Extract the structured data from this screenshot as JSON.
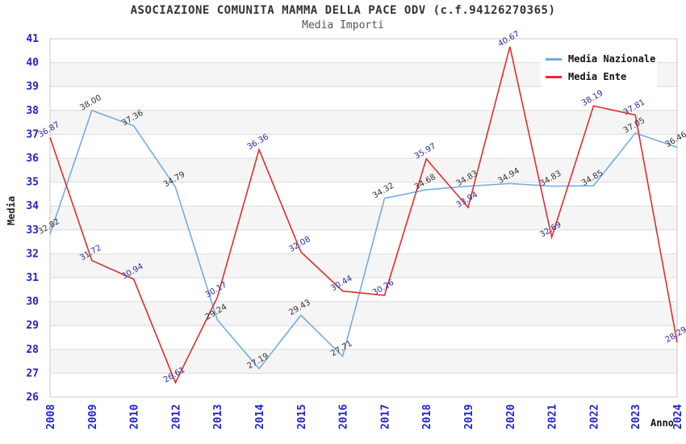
{
  "title": "ASOCIAZIONE COMUNITA MAMMA DELLA PACE ODV (c.f.94126270365)",
  "subtitle": "Media Importi",
  "chart_data": {
    "type": "line",
    "title": "ASOCIAZIONE COMUNITA MAMMA DELLA PACE ODV (c.f.94126270365)",
    "subtitle": "Media Importi",
    "xlabel": "Anno",
    "ylabel": "Media",
    "x": [
      "2008",
      "2009",
      "2010",
      "2012",
      "2013",
      "2014",
      "2015",
      "2016",
      "2017",
      "2018",
      "2019",
      "2020",
      "2021",
      "2022",
      "2023",
      "2024"
    ],
    "series": [
      {
        "name": "Media Nazionale",
        "color": "#73ACE3",
        "label_color": "#333333",
        "values": [
          32.82,
          38.0,
          37.36,
          34.79,
          29.24,
          27.19,
          29.43,
          27.71,
          34.32,
          34.68,
          34.83,
          34.94,
          34.83,
          34.85,
          37.05,
          36.46
        ]
      },
      {
        "name": "Media Ente",
        "color": "#E22D2D",
        "label_color": "#2B2BA0",
        "values": [
          36.87,
          31.72,
          30.94,
          26.61,
          30.17,
          36.36,
          32.08,
          30.44,
          30.26,
          35.97,
          33.94,
          40.67,
          32.69,
          38.19,
          37.81,
          28.29
        ]
      }
    ],
    "ylim": [
      26,
      41
    ],
    "ytick_step": 1,
    "yticks": [
      26,
      27,
      28,
      29,
      30,
      31,
      32,
      33,
      34,
      35,
      36,
      37,
      38,
      39,
      40,
      41
    ],
    "grid": "horizontal",
    "grid_color": "#DCDCDC",
    "border_color": "#C8C8C8",
    "band_colors": [
      "#FFFFFF",
      "#F5F5F5"
    ],
    "tick_label_color": "#2222CC",
    "legend_position": "top-right",
    "value_label_rotation_deg": -30,
    "tick_label_rotation_deg": -90
  }
}
